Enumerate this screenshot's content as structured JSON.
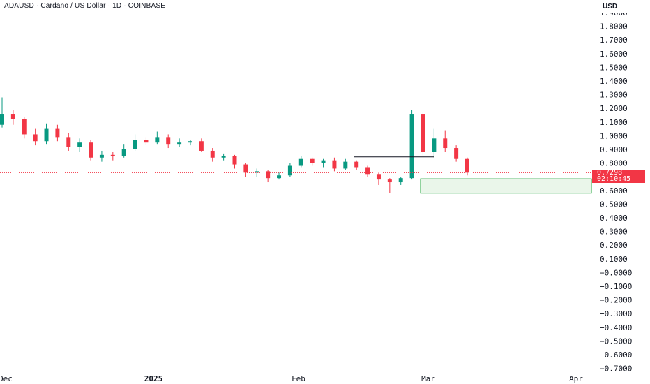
{
  "header": {
    "title": "ADAUSD · Cardano / US Dollar · 1D · COINBASE",
    "currency": "USD"
  },
  "price_tag": {
    "value": "0.7298",
    "countdown": "02:10:45"
  },
  "colors": {
    "up": "#089981",
    "down": "#f23645",
    "box_outline": "#22a53b",
    "box_fill": "#eaf6ea",
    "resistance_line": "#131722",
    "last_price_line": "#f23645"
  },
  "chart_data": {
    "type": "candlestick",
    "symbol": "ADAUSD",
    "interval": "1D",
    "exchange": "COINBASE",
    "x_axis_labels": [
      "Dec",
      "2025",
      "Feb",
      "Mar",
      "Apr"
    ],
    "y_ticks": [
      "1.9000",
      "1.8000",
      "1.7000",
      "1.6000",
      "1.5000",
      "1.4000",
      "1.3000",
      "1.2000",
      "1.1000",
      "1.0000",
      "0.9000",
      "0.8000",
      "0.7000",
      "0.6000",
      "0.5000",
      "0.4000",
      "0.3000",
      "0.2000",
      "0.1000",
      "−0.0000",
      "−0.1000",
      "−0.2000",
      "−0.3000",
      "−0.4000",
      "−0.5000",
      "−0.6000",
      "−0.7000"
    ],
    "ylim": [
      -0.72,
      1.92
    ],
    "last_price": 0.7298,
    "candles": [
      [
        1.08,
        1.16,
        1.28,
        1.06
      ],
      [
        1.16,
        1.12,
        1.19,
        1.08
      ],
      [
        1.12,
        1.01,
        1.14,
        0.98
      ],
      [
        1.01,
        0.96,
        1.05,
        0.93
      ],
      [
        0.96,
        1.05,
        1.09,
        0.94
      ],
      [
        1.05,
        0.99,
        1.08,
        0.96
      ],
      [
        0.99,
        0.92,
        1.02,
        0.89
      ],
      [
        0.92,
        0.95,
        0.98,
        0.88
      ],
      [
        0.95,
        0.84,
        0.97,
        0.82
      ],
      [
        0.84,
        0.86,
        0.89,
        0.81
      ],
      [
        0.86,
        0.85,
        0.88,
        0.82
      ],
      [
        0.85,
        0.9,
        0.94,
        0.84
      ],
      [
        0.9,
        0.97,
        1.01,
        0.89
      ],
      [
        0.97,
        0.95,
        0.99,
        0.93
      ],
      [
        0.95,
        0.99,
        1.03,
        0.94
      ],
      [
        0.99,
        0.94,
        1.01,
        0.91
      ],
      [
        0.94,
        0.95,
        0.98,
        0.92
      ],
      [
        0.95,
        0.96,
        0.97,
        0.93
      ],
      [
        0.96,
        0.89,
        0.98,
        0.88
      ],
      [
        0.89,
        0.84,
        0.91,
        0.81
      ],
      [
        0.84,
        0.85,
        0.87,
        0.82
      ],
      [
        0.85,
        0.79,
        0.86,
        0.76
      ],
      [
        0.79,
        0.73,
        0.8,
        0.7
      ],
      [
        0.73,
        0.74,
        0.76,
        0.7
      ],
      [
        0.74,
        0.69,
        0.75,
        0.66
      ],
      [
        0.69,
        0.71,
        0.73,
        0.68
      ],
      [
        0.71,
        0.78,
        0.8,
        0.7
      ],
      [
        0.78,
        0.83,
        0.85,
        0.77
      ],
      [
        0.83,
        0.8,
        0.84,
        0.78
      ],
      [
        0.8,
        0.82,
        0.83,
        0.77
      ],
      [
        0.82,
        0.76,
        0.84,
        0.74
      ],
      [
        0.76,
        0.81,
        0.83,
        0.75
      ],
      [
        0.81,
        0.77,
        0.82,
        0.75
      ],
      [
        0.77,
        0.72,
        0.78,
        0.7
      ],
      [
        0.72,
        0.68,
        0.73,
        0.64
      ],
      [
        0.68,
        0.66,
        0.69,
        0.58
      ],
      [
        0.66,
        0.69,
        0.7,
        0.64
      ],
      [
        0.69,
        1.16,
        1.19,
        0.68
      ],
      [
        1.16,
        0.88,
        1.17,
        0.84
      ],
      [
        0.88,
        0.98,
        1.05,
        0.84
      ],
      [
        0.98,
        0.91,
        1.04,
        0.88
      ],
      [
        0.91,
        0.83,
        0.93,
        0.81
      ],
      [
        0.83,
        0.73,
        0.84,
        0.71
      ]
    ],
    "candle_x_start": 3,
    "candle_x_step": 15.6,
    "annotations": [
      {
        "type": "horizontal_segment",
        "price": 0.845
      },
      {
        "type": "zone",
        "price_top": 0.685,
        "price_bottom": 0.58
      }
    ]
  }
}
